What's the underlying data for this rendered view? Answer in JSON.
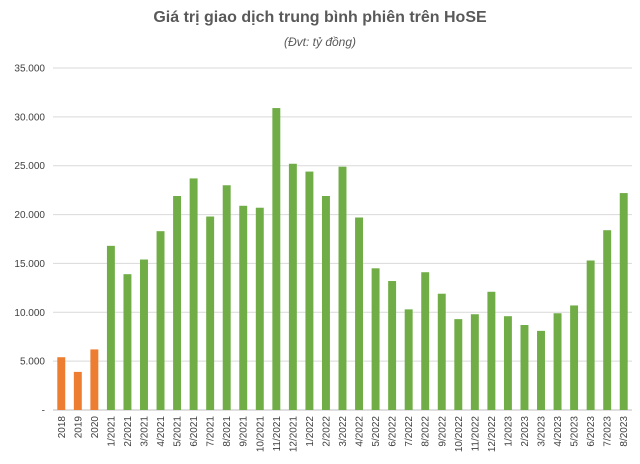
{
  "chart_data": {
    "type": "bar",
    "title": "Giá trị giao dịch trung bình phiên trên HoSE",
    "subtitle": "(Đvt: tỷ đồng)",
    "xlabel": "",
    "ylabel": "",
    "ylim": [
      0,
      35000
    ],
    "y_ticks": [
      {
        "value": 0,
        "label": "-"
      },
      {
        "value": 5000,
        "label": "5.000"
      },
      {
        "value": 10000,
        "label": "10.000"
      },
      {
        "value": 15000,
        "label": "15.000"
      },
      {
        "value": 20000,
        "label": "20.000"
      },
      {
        "value": 25000,
        "label": "25.000"
      },
      {
        "value": 30000,
        "label": "30.000"
      },
      {
        "value": 35000,
        "label": "35.000"
      }
    ],
    "grid": true,
    "legend": "none",
    "colors": {
      "annual": "#ED7D31",
      "monthly": "#70AD47",
      "grid": "#D9D9D9",
      "axis": "#BFBFBF"
    },
    "categories": [
      "2018",
      "2019",
      "2020",
      "1/2021",
      "2/2021",
      "3/2021",
      "4/2021",
      "5/2021",
      "6/2021",
      "7/2021",
      "8/2021",
      "9/2021",
      "10/2021",
      "11/2021",
      "12/2021",
      "1/2022",
      "2/2022",
      "3/2022",
      "4/2022",
      "5/2022",
      "6/2022",
      "7/2022",
      "8/2022",
      "9/2022",
      "10/2022",
      "11/2022",
      "12/2022",
      "1/2023",
      "2/2023",
      "3/2023",
      "4/2023",
      "5/2023",
      "6/2023",
      "7/2023",
      "8/2023"
    ],
    "values": [
      5400,
      3900,
      6200,
      16800,
      13900,
      15400,
      18300,
      21900,
      23700,
      19800,
      23000,
      20900,
      20700,
      30900,
      25200,
      24400,
      21900,
      24900,
      19700,
      14500,
      13200,
      10300,
      14100,
      11900,
      9300,
      9800,
      12100,
      9600,
      8700,
      8100,
      9900,
      10700,
      15300,
      18400,
      22200
    ],
    "bar_color_group": [
      "annual",
      "annual",
      "annual",
      "monthly",
      "monthly",
      "monthly",
      "monthly",
      "monthly",
      "monthly",
      "monthly",
      "monthly",
      "monthly",
      "monthly",
      "monthly",
      "monthly",
      "monthly",
      "monthly",
      "monthly",
      "monthly",
      "monthly",
      "monthly",
      "monthly",
      "monthly",
      "monthly",
      "monthly",
      "monthly",
      "monthly",
      "monthly",
      "monthly",
      "monthly",
      "monthly",
      "monthly",
      "monthly",
      "monthly",
      "monthly"
    ]
  }
}
